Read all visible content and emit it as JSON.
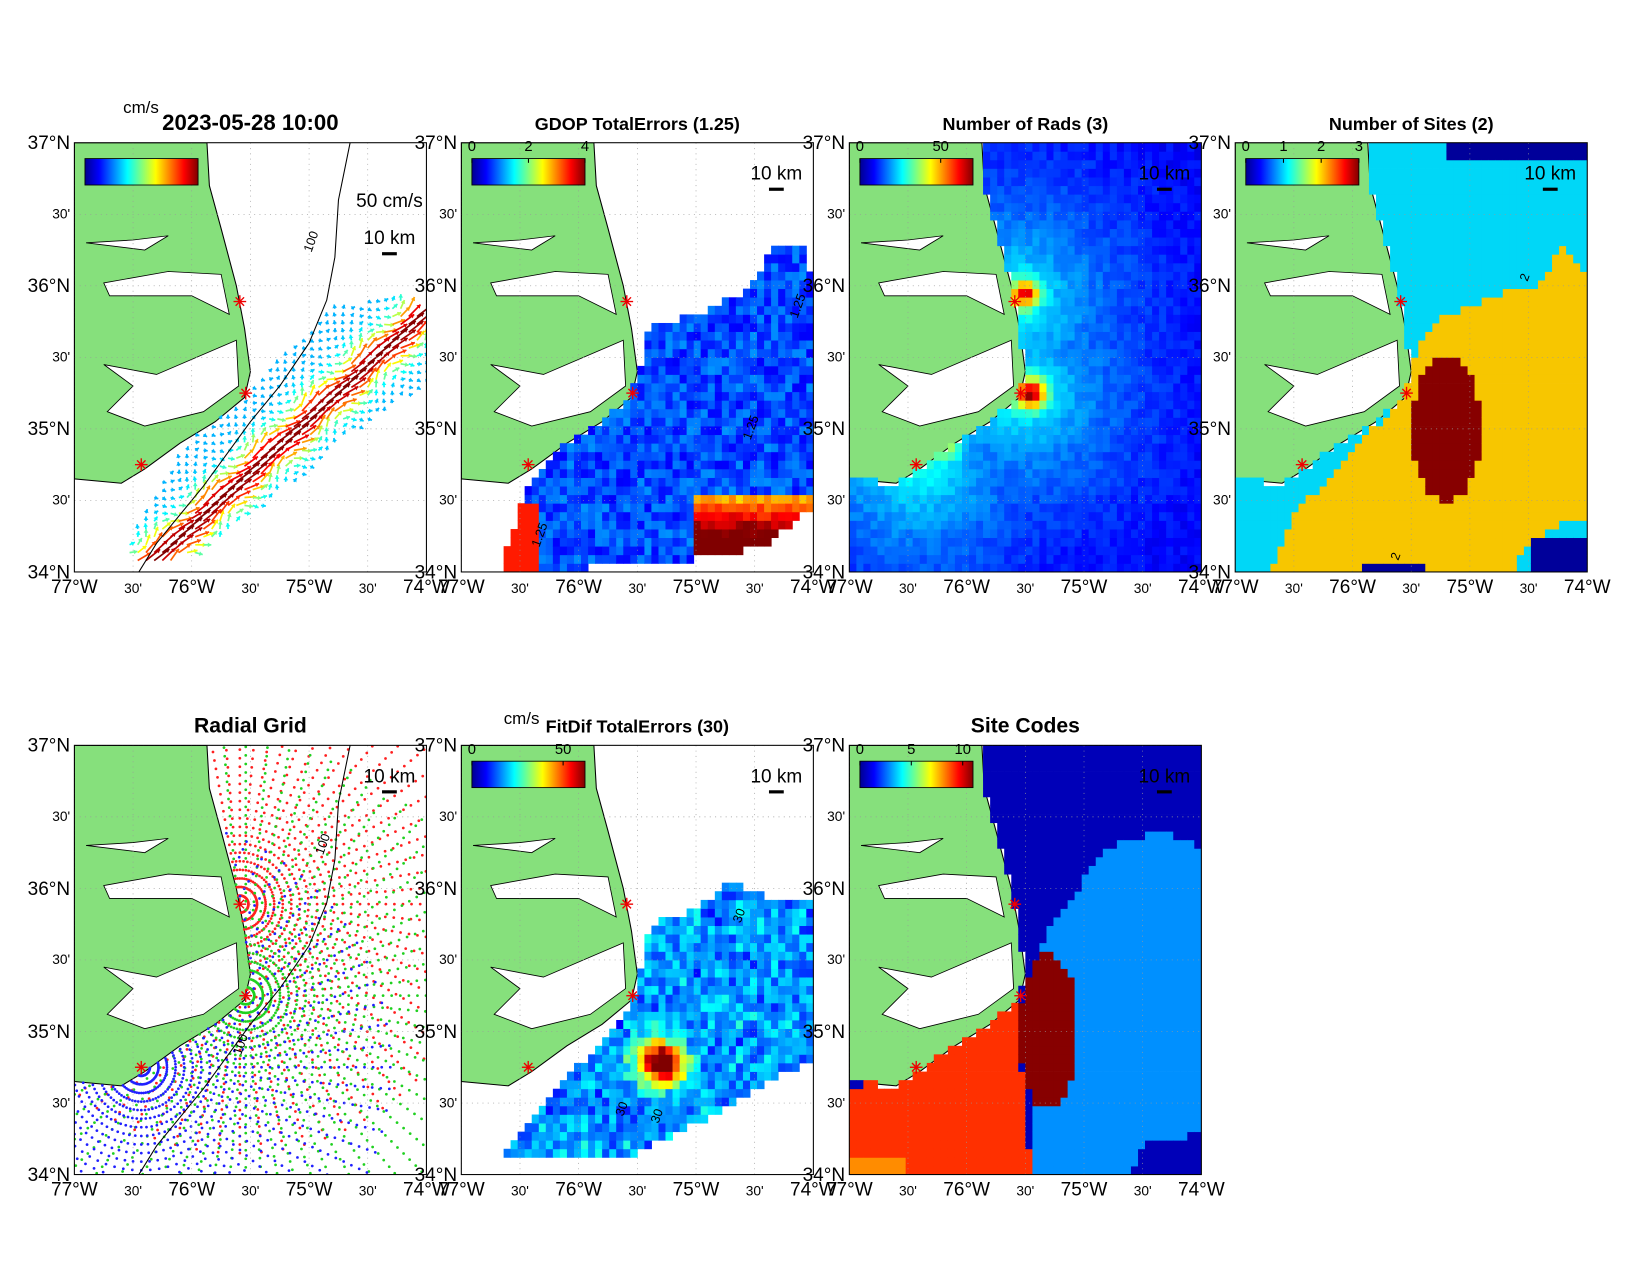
{
  "xlim": [
    -77,
    -74
  ],
  "ylim": [
    34,
    37
  ],
  "lon_ticks": [
    {
      "value": -77,
      "label": "77°W"
    },
    {
      "value": -76.5,
      "label": "30'"
    },
    {
      "value": -76,
      "label": "76°W"
    },
    {
      "value": -75.5,
      "label": "30'"
    },
    {
      "value": -75,
      "label": "75°W"
    },
    {
      "value": -74.5,
      "label": "30'"
    },
    {
      "value": -74,
      "label": "74°W"
    }
  ],
  "lat_ticks": [
    {
      "value": 37,
      "label": "37°N"
    },
    {
      "value": 36.5,
      "label": "30'"
    },
    {
      "value": 36,
      "label": "36°N"
    },
    {
      "value": 35.5,
      "label": "30'"
    },
    {
      "value": 35,
      "label": "35°N"
    },
    {
      "value": 34.5,
      "label": "30'"
    },
    {
      "value": 34,
      "label": "34°N"
    }
  ],
  "panels": [
    {
      "title": "2023-05-28 10:00",
      "colorbar_label": "cm/s",
      "vector_scale_label": "50 cm/s",
      "scale_bar_label": "10 km",
      "contour_labels": [
        "100"
      ]
    },
    {
      "title": "GDOP TotalErrors (1.25)",
      "clim": [
        0,
        4
      ],
      "colorbar_ticks": [
        0,
        2,
        4
      ],
      "scale_bar_label": "10 km",
      "contour_labels": [
        "1.25",
        "1.25",
        "1.25"
      ]
    },
    {
      "title": "Number of Rads (3)",
      "clim": [
        0,
        70
      ],
      "colorbar_ticks": [
        0,
        50
      ],
      "scale_bar_label": "10 km"
    },
    {
      "title": "Number of Sites (2)",
      "clim": [
        0,
        3
      ],
      "colorbar_ticks": [
        0,
        1,
        2,
        3
      ],
      "scale_bar_label": "10 km",
      "contour_labels": [
        "2",
        "2"
      ]
    },
    {
      "title": "Radial Grid",
      "scale_bar_label": "10 km",
      "contour_labels": [
        "100",
        "100"
      ]
    },
    {
      "title": "FitDif TotalErrors (30)",
      "colorbar_label": "cm/s",
      "clim": [
        0,
        62
      ],
      "colorbar_ticks": [
        0,
        50
      ],
      "scale_bar_label": "10 km",
      "contour_labels": [
        "30",
        "30",
        "30"
      ]
    },
    {
      "title": "Site Codes",
      "clim": [
        0,
        11
      ],
      "colorbar_ticks": [
        0,
        5,
        10
      ],
      "scale_bar_label": "10 km"
    }
  ]
}
